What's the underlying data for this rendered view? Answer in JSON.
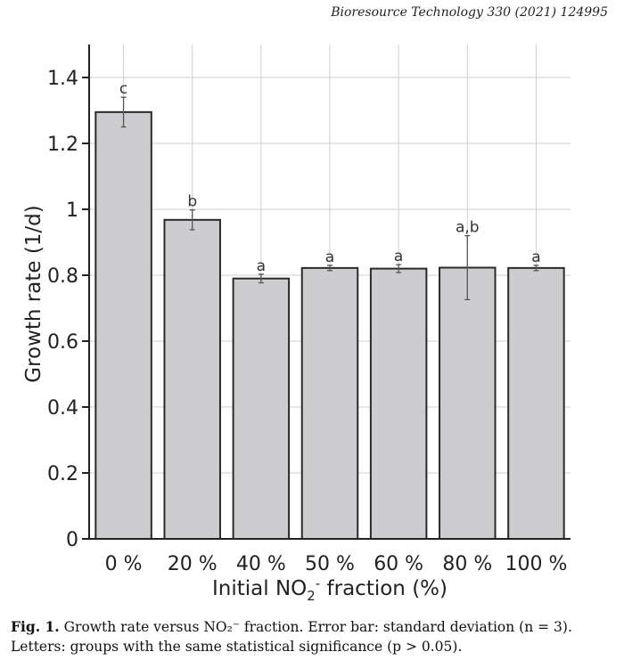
{
  "header": {
    "journal_ref": "Bioresource Technology 330 (2021) 124995"
  },
  "caption": {
    "label": "Fig. 1.",
    "text": "Growth rate versus NO₂⁻ fraction. Error bar: standard deviation (n = 3). Letters: groups with the same statistical significance (p > 0.05)."
  },
  "chart_data": {
    "type": "bar",
    "title": "",
    "xlabel_main": "Initial NO",
    "xlabel_sub": "2",
    "xlabel_sup": "-",
    "xlabel_tail": " fraction (%)",
    "ylabel": "Growth rate (1/d)",
    "categories": [
      "0 %",
      "20 %",
      "40 %",
      "50 %",
      "60 %",
      "80 %",
      "100 %"
    ],
    "values": [
      1.295,
      0.968,
      0.79,
      0.822,
      0.82,
      0.823,
      0.822
    ],
    "errors": [
      0.045,
      0.03,
      0.013,
      0.008,
      0.012,
      0.097,
      0.008
    ],
    "significance": [
      "c",
      "b",
      "a",
      "a",
      "a",
      "a,b",
      "a"
    ],
    "ylim": [
      0,
      1.5
    ],
    "yticks": [
      0,
      0.2,
      0.4,
      0.6,
      0.8,
      1,
      1.2,
      1.4
    ],
    "ytick_labels": [
      "0",
      "0.2",
      "0.4",
      "0.6",
      "0.8",
      "1",
      "1.2",
      "1.4"
    ],
    "grid": true,
    "colors": {
      "bar_fill": "#cdcdcf",
      "bar_stroke": "#2a2a2a",
      "grid": "#cfcfcf",
      "axis": "#222222",
      "error": "#555555"
    }
  }
}
